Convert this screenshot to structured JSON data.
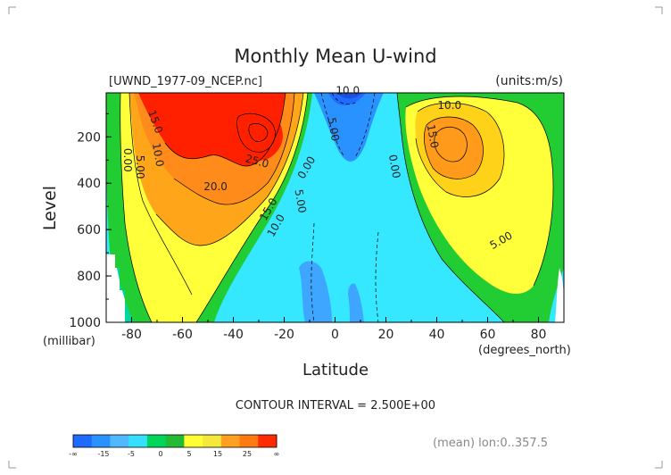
{
  "chart_data": {
    "type": "heatmap",
    "title": "Monthly Mean U-wind",
    "source_label": "[UWND_1977-09_NCEP.nc]",
    "units_label": "(units:m/s)",
    "ylabel": "Level",
    "yunit": "(millibar)",
    "xlabel": "Latitude",
    "xunit": "(degrees_north)",
    "xlim": [
      -90,
      90
    ],
    "ylim": [
      1000,
      10
    ],
    "x_ticks": [
      {
        "value": -80,
        "label": "-80"
      },
      {
        "value": -60,
        "label": "-60"
      },
      {
        "value": -40,
        "label": "-40"
      },
      {
        "value": -20,
        "label": "-20"
      },
      {
        "value": 0,
        "label": "0"
      },
      {
        "value": 20,
        "label": "20"
      },
      {
        "value": 40,
        "label": "40"
      },
      {
        "value": 60,
        "label": "60"
      },
      {
        "value": 80,
        "label": "80"
      }
    ],
    "y_ticks": [
      {
        "value": 200,
        "label": "200"
      },
      {
        "value": 400,
        "label": "400"
      },
      {
        "value": 600,
        "label": "600"
      },
      {
        "value": 800,
        "label": "800"
      },
      {
        "value": 1000,
        "label": "1000"
      }
    ],
    "contour_labels": [
      {
        "text": "0.00",
        "lat": -83,
        "lev": 300
      },
      {
        "text": "5.00",
        "lat": -78,
        "lev": 330
      },
      {
        "text": "10.0",
        "lat": -71,
        "lev": 280
      },
      {
        "text": "15.0",
        "lat": -72,
        "lev": 140
      },
      {
        "text": "20.0",
        "lat": -47,
        "lev": 430
      },
      {
        "text": "25.0",
        "lat": -31,
        "lev": 320
      },
      {
        "text": "15.0",
        "lat": -25,
        "lev": 520
      },
      {
        "text": "10.0",
        "lat": -22,
        "lev": 590
      },
      {
        "text": "5.00",
        "lat": -15,
        "lev": 480
      },
      {
        "text": "0.00",
        "lat": -10,
        "lev": 340
      },
      {
        "text": "5.00",
        "lat": -2,
        "lev": 170
      },
      {
        "text": "10.0",
        "lat": 5,
        "lev": 15
      },
      {
        "text": "0.00",
        "lat": 22,
        "lev": 330
      },
      {
        "text": "10.0",
        "lat": 45,
        "lev": 80
      },
      {
        "text": "15.0",
        "lat": 37,
        "lev": 200
      },
      {
        "text": "5.00",
        "lat": 66,
        "lev": 660
      }
    ],
    "contour_interval": "CONTOUR INTERVAL = 2.500E+00",
    "footnote": "(mean) lon:0..357.5",
    "colorbar": {
      "tick_labels": [
        "-∞",
        "-15",
        "-5",
        "0",
        "5",
        "15",
        "25",
        "∞"
      ],
      "colors": [
        "#1f6bff",
        "#2a92ff",
        "#4fb8ff",
        "#35e0ff",
        "#00d65a",
        "#22bb33",
        "#ffff33",
        "#f5e83a",
        "#ffa020",
        "#ff7a10",
        "#ff2a00"
      ]
    },
    "colors": {
      "neg10": "#1f6bff",
      "neg5": "#2a92ff",
      "neg": "#4fd8ff",
      "c0": "#00e0a0",
      "c5": "#22cc33",
      "c10": "#ffff3a",
      "c15": "#ffd21a",
      "c20": "#ff9a1a",
      "c25": "#ff2000"
    }
  }
}
